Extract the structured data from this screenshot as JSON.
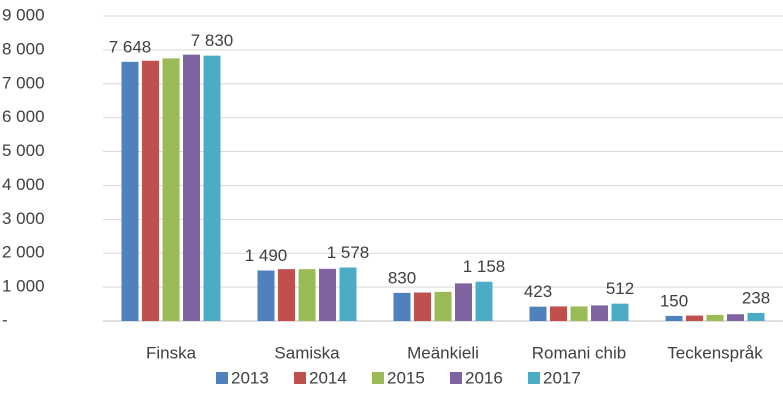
{
  "chart_data": {
    "type": "bar",
    "categories": [
      "Finska",
      "Samiska",
      "Meänkieli",
      "Romani chib",
      "Teckenspråk"
    ],
    "series": [
      {
        "name": "2013",
        "color": "#4f81bd",
        "values": [
          7648,
          1490,
          830,
          423,
          150
        ],
        "value_labels": [
          "7 648",
          "1 490",
          "830",
          "423",
          "150"
        ]
      },
      {
        "name": "2014",
        "color": "#c0504d",
        "values": [
          7680,
          1530,
          840,
          430,
          160
        ],
        "value_labels": [
          null,
          null,
          null,
          null,
          null
        ]
      },
      {
        "name": "2015",
        "color": "#9bbb59",
        "values": [
          7750,
          1530,
          860,
          430,
          180
        ],
        "value_labels": [
          null,
          null,
          null,
          null,
          null
        ]
      },
      {
        "name": "2016",
        "color": "#8064a2",
        "values": [
          7860,
          1540,
          1110,
          460,
          200
        ],
        "value_labels": [
          null,
          null,
          null,
          null,
          null
        ]
      },
      {
        "name": "2017",
        "color": "#4bacc6",
        "values": [
          7830,
          1578,
          1158,
          512,
          238
        ],
        "value_labels": [
          "7 830",
          "1 578",
          "1 158",
          "512",
          "238"
        ]
      }
    ],
    "ylim": [
      0,
      9000
    ],
    "yticks": [
      {
        "value": 0,
        "label": "-"
      },
      {
        "value": 1000,
        "label": "1 000"
      },
      {
        "value": 2000,
        "label": "2 000"
      },
      {
        "value": 3000,
        "label": "3 000"
      },
      {
        "value": 4000,
        "label": "4 000"
      },
      {
        "value": 5000,
        "label": "5 000"
      },
      {
        "value": 6000,
        "label": "6 000"
      },
      {
        "value": 7000,
        "label": "7 000"
      },
      {
        "value": 8000,
        "label": "8 000"
      },
      {
        "value": 9000,
        "label": "9 000"
      }
    ],
    "grid": true,
    "legend": "bottom"
  }
}
